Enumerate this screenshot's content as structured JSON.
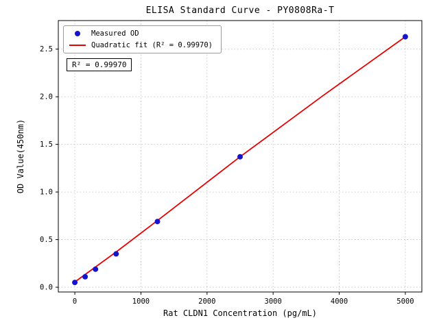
{
  "chart_data": {
    "type": "scatter",
    "title": "ELISA Standard Curve - PY0808Ra-T",
    "xlabel": "Rat CLDN1 Concentration (pg/mL)",
    "ylabel": "OD Value(450nm)",
    "xlim": [
      -250,
      5250
    ],
    "ylim": [
      -0.05,
      2.8
    ],
    "x_ticks": [
      0,
      1000,
      2000,
      3000,
      4000,
      5000
    ],
    "y_ticks": [
      0.0,
      0.5,
      1.0,
      1.5,
      2.0,
      2.5
    ],
    "grid": true,
    "legend_position": "upper-left",
    "annotation": "R² = 0.99970",
    "series": [
      {
        "name": "Measured OD",
        "kind": "scatter",
        "color": "#1414cc",
        "x": [
          0,
          156,
          312,
          625,
          1250,
          2500,
          5000
        ],
        "y": [
          0.05,
          0.11,
          0.19,
          0.35,
          0.69,
          1.37,
          2.63
        ]
      },
      {
        "name": "Quadratic fit (R² = 0.99970)",
        "kind": "line",
        "color": "#e60000",
        "x": [
          0,
          625,
          1250,
          2500,
          3750,
          5000
        ],
        "y": [
          0.055,
          0.37,
          0.7,
          1.37,
          2.01,
          2.63
        ]
      }
    ]
  }
}
